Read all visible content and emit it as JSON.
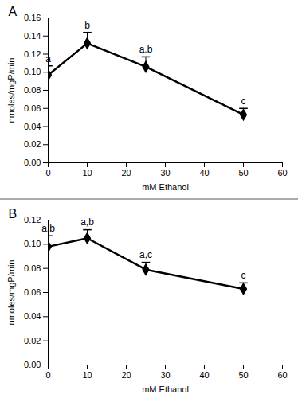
{
  "chart_data": [
    {
      "type": "line",
      "title": "A",
      "x_label": "mM Ethanol",
      "y_label": "nmoles/mgP/min",
      "x": [
        0,
        10,
        25,
        50
      ],
      "values": [
        0.097,
        0.132,
        0.106,
        0.053
      ],
      "errors": [
        0.01,
        0.012,
        0.011,
        0.007
      ],
      "annotations": [
        "a",
        "b",
        "a.b",
        "c"
      ],
      "color": "#000000",
      "marker": "diamond",
      "xlim": [
        0,
        60
      ],
      "xticks": [
        0,
        10,
        20,
        30,
        40,
        50,
        60
      ],
      "ylim": [
        0,
        0.16
      ],
      "yticks": [
        {
          "value": 0,
          "label": "0.00"
        },
        {
          "value": 0.02,
          "label": "0.02"
        },
        {
          "value": 0.04,
          "label": "0.04"
        },
        {
          "value": 0.06,
          "label": "0.06"
        },
        {
          "value": 0.08,
          "label": "0.08"
        },
        {
          "value": 0.1,
          "label": "0.10"
        },
        {
          "value": 0.12,
          "label": "0.12"
        },
        {
          "value": 0.14,
          "label": "0.14"
        },
        {
          "value": 0.16,
          "label": "0.16"
        }
      ]
    },
    {
      "type": "line",
      "title": "B",
      "x_label": "mM Ethanol",
      "y_label": "nmoles/mgP/min",
      "x": [
        0,
        10,
        25,
        50
      ],
      "values": [
        0.098,
        0.105,
        0.079,
        0.063
      ],
      "errors": [
        0.009,
        0.007,
        0.006,
        0.005
      ],
      "annotations": [
        "a.b",
        "a,b",
        "a,c",
        "c"
      ],
      "color": "#000000",
      "marker": "diamond",
      "xlim": [
        0,
        60
      ],
      "xticks": [
        0,
        10,
        20,
        30,
        40,
        50,
        60
      ],
      "ylim": [
        0,
        0.12
      ],
      "yticks": [
        {
          "value": 0,
          "label": "0.00"
        },
        {
          "value": 0.02,
          "label": "0.02"
        },
        {
          "value": 0.04,
          "label": "0.04"
        },
        {
          "value": 0.06,
          "label": "0.06"
        },
        {
          "value": 0.08,
          "label": "0.08"
        },
        {
          "value": 0.1,
          "label": "0.10"
        },
        {
          "value": 0.12,
          "label": "0.12"
        }
      ]
    }
  ]
}
